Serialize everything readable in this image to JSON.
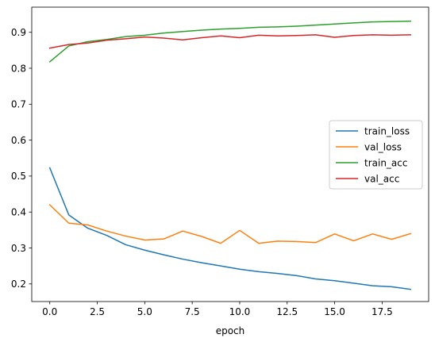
{
  "chart_data": {
    "type": "line",
    "title": "",
    "xlabel": "epoch",
    "ylabel": "",
    "x": [
      0,
      1,
      2,
      3,
      4,
      5,
      6,
      7,
      8,
      9,
      10,
      11,
      12,
      13,
      14,
      15,
      16,
      17,
      18,
      19
    ],
    "xlim": [
      -0.95,
      19.95
    ],
    "ylim": [
      0.151,
      0.97
    ],
    "xticks": [
      0.0,
      2.5,
      5.0,
      7.5,
      10.0,
      12.5,
      15.0,
      17.5
    ],
    "xtick_labels": [
      "0.0",
      "2.5",
      "5.0",
      "7.5",
      "10.0",
      "12.5",
      "15.0",
      "17.5"
    ],
    "yticks": [
      0.2,
      0.3,
      0.4,
      0.5,
      0.6,
      0.7,
      0.8,
      0.9
    ],
    "ytick_labels": [
      "0.2",
      "0.3",
      "0.4",
      "0.5",
      "0.6",
      "0.7",
      "0.8",
      "0.9"
    ],
    "grid": false,
    "legend_position": "center-right",
    "series": [
      {
        "name": "train_loss",
        "color": "#1f77b4",
        "values": [
          0.523,
          0.392,
          0.355,
          0.335,
          0.309,
          0.294,
          0.281,
          0.269,
          0.259,
          0.25,
          0.241,
          0.234,
          0.229,
          0.223,
          0.214,
          0.209,
          0.202,
          0.195,
          0.192,
          0.185
        ]
      },
      {
        "name": "val_loss",
        "color": "#ff7f0e",
        "values": [
          0.42,
          0.369,
          0.364,
          0.347,
          0.333,
          0.322,
          0.325,
          0.347,
          0.332,
          0.313,
          0.349,
          0.313,
          0.319,
          0.318,
          0.315,
          0.339,
          0.32,
          0.339,
          0.324,
          0.34
        ]
      },
      {
        "name": "train_acc",
        "color": "#2ca02c",
        "values": [
          0.818,
          0.862,
          0.874,
          0.88,
          0.888,
          0.892,
          0.898,
          0.902,
          0.906,
          0.909,
          0.911,
          0.914,
          0.915,
          0.917,
          0.92,
          0.923,
          0.926,
          0.929,
          0.93,
          0.931
        ]
      },
      {
        "name": "val_acc",
        "color": "#d62728",
        "values": [
          0.856,
          0.866,
          0.87,
          0.878,
          0.882,
          0.887,
          0.884,
          0.879,
          0.885,
          0.89,
          0.885,
          0.892,
          0.89,
          0.891,
          0.893,
          0.886,
          0.891,
          0.893,
          0.892,
          0.893
        ]
      }
    ]
  }
}
